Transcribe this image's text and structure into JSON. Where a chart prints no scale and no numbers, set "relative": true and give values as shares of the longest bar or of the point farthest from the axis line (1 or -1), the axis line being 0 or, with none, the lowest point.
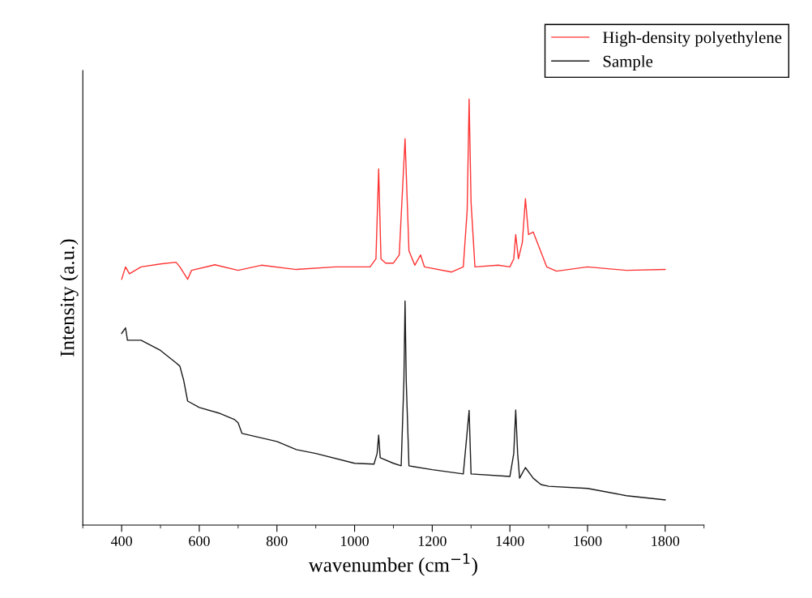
{
  "chart_data": {
    "type": "line",
    "relative": true,
    "xlabel": "wavenumber (cm$^{−1}$)",
    "ylabel": "Intensity (a.u.)",
    "xlim": [
      300,
      1900
    ],
    "xticks": [
      400,
      600,
      800,
      1000,
      1200,
      1400,
      1600,
      1800
    ],
    "legend": "top right",
    "grid": false,
    "series": [
      {
        "name": "High-density polyethylene",
        "color": "#ff3333",
        "x": [
          400,
          410,
          420,
          450,
          500,
          540,
          550,
          570,
          580,
          640,
          700,
          760,
          850,
          950,
          1040,
          1055,
          1062,
          1068,
          1080,
          1100,
          1115,
          1130,
          1140,
          1155,
          1170,
          1180,
          1250,
          1280,
          1290,
          1295,
          1300,
          1310,
          1370,
          1400,
          1410,
          1415,
          1422,
          1432,
          1440,
          1448,
          1460,
          1475,
          1495,
          1520,
          1600,
          1700,
          1800
        ],
        "values": [
          0.577,
          0.606,
          0.59,
          0.606,
          0.613,
          0.617,
          0.606,
          0.577,
          0.598,
          0.611,
          0.598,
          0.61,
          0.6,
          0.606,
          0.606,
          0.625,
          0.836,
          0.625,
          0.615,
          0.615,
          0.634,
          0.907,
          0.644,
          0.61,
          0.634,
          0.606,
          0.594,
          0.606,
          0.739,
          1.0,
          0.758,
          0.606,
          0.61,
          0.606,
          0.625,
          0.682,
          0.625,
          0.663,
          0.766,
          0.682,
          0.688,
          0.653,
          0.606,
          0.596,
          0.606,
          0.598,
          0.6
        ]
      },
      {
        "name": "Sample",
        "color": "#1a1a1a",
        "x": [
          400,
          410,
          415,
          450,
          500,
          540,
          550,
          560,
          570,
          600,
          650,
          690,
          700,
          710,
          800,
          850,
          900,
          1000,
          1050,
          1058,
          1062,
          1066,
          1100,
          1120,
          1127,
          1130,
          1133,
          1140,
          1200,
          1280,
          1295,
          1300,
          1400,
          1410,
          1415,
          1420,
          1425,
          1440,
          1460,
          1480,
          1500,
          1600,
          1700,
          1800
        ],
        "values": [
          0.45,
          0.463,
          0.434,
          0.434,
          0.41,
          0.381,
          0.373,
          0.339,
          0.291,
          0.276,
          0.263,
          0.248,
          0.24,
          0.215,
          0.196,
          0.177,
          0.168,
          0.145,
          0.143,
          0.168,
          0.211,
          0.158,
          0.145,
          0.139,
          0.339,
          0.526,
          0.339,
          0.139,
          0.13,
          0.12,
          0.269,
          0.12,
          0.114,
          0.168,
          0.27,
          0.168,
          0.11,
          0.135,
          0.11,
          0.095,
          0.091,
          0.086,
          0.069,
          0.059
        ]
      }
    ]
  }
}
